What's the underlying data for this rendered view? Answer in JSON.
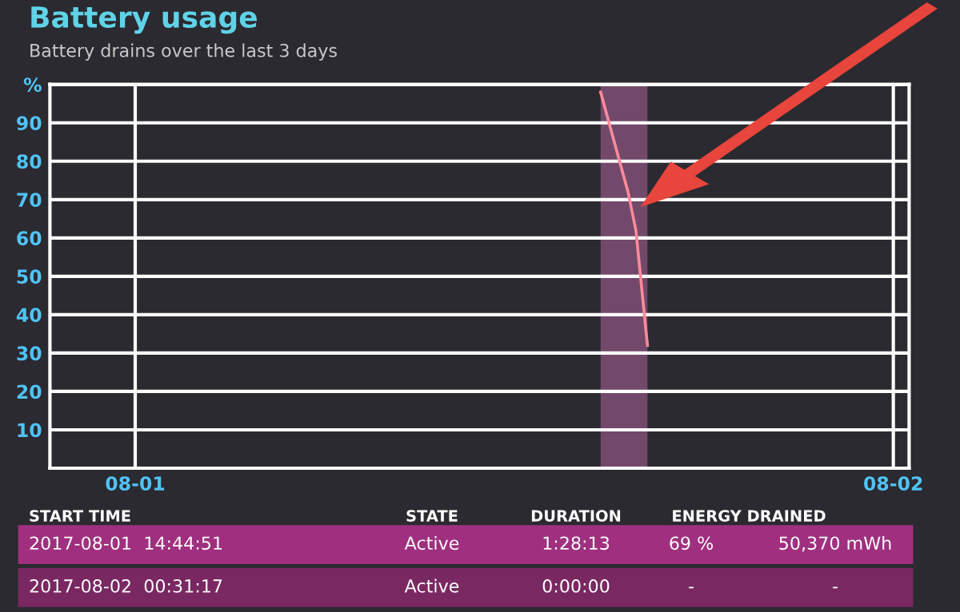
{
  "chart_data": {
    "type": "line",
    "title": "Battery usage",
    "subtitle": "Battery drains over the last 3 days",
    "series": [
      {
        "color": "#ff8a9a",
        "x": [
          "2017-08-01T14:44",
          "2017-08-01T15:36",
          "2017-08-01T15:51",
          "2017-08-01T16:13"
        ],
        "values": [
          98,
          72,
          62,
          32
        ]
      }
    ],
    "xlim": [
      "2017-07-31T21:18",
      "2017-08-02T00:30"
    ],
    "xticks": [
      {
        "value": "2017-08-01",
        "label": "08-01"
      },
      {
        "value": "2017-08-02",
        "label": "08-02"
      }
    ],
    "ylim": [
      0,
      100
    ],
    "yticks": [
      {
        "value": 10,
        "label": "10"
      },
      {
        "value": 20,
        "label": "20"
      },
      {
        "value": 30,
        "label": "30"
      },
      {
        "value": 40,
        "label": "40"
      },
      {
        "value": 50,
        "label": "50"
      },
      {
        "value": 60,
        "label": "60"
      },
      {
        "value": 70,
        "label": "70"
      },
      {
        "value": 80,
        "label": "80"
      },
      {
        "value": 90,
        "label": "90"
      },
      {
        "value": 100,
        "label": "%"
      }
    ],
    "bands": [
      {
        "axis": "x",
        "from": "2017-08-01T14:44",
        "to": "2017-08-01T16:13",
        "color": "#7a4d72"
      }
    ],
    "grid": true,
    "marker": "none",
    "line_style": "solid",
    "annotations": [
      "START TIME",
      "STATE",
      "DURATION",
      "ENERGY DRAINED",
      "2017-08-01  14:44:51",
      "Active",
      "1:28:13",
      "69 %",
      "50,370 mWh",
      "2017-08-02  00:31:17",
      "Active",
      "0:00:00",
      "-",
      "-"
    ]
  }
}
